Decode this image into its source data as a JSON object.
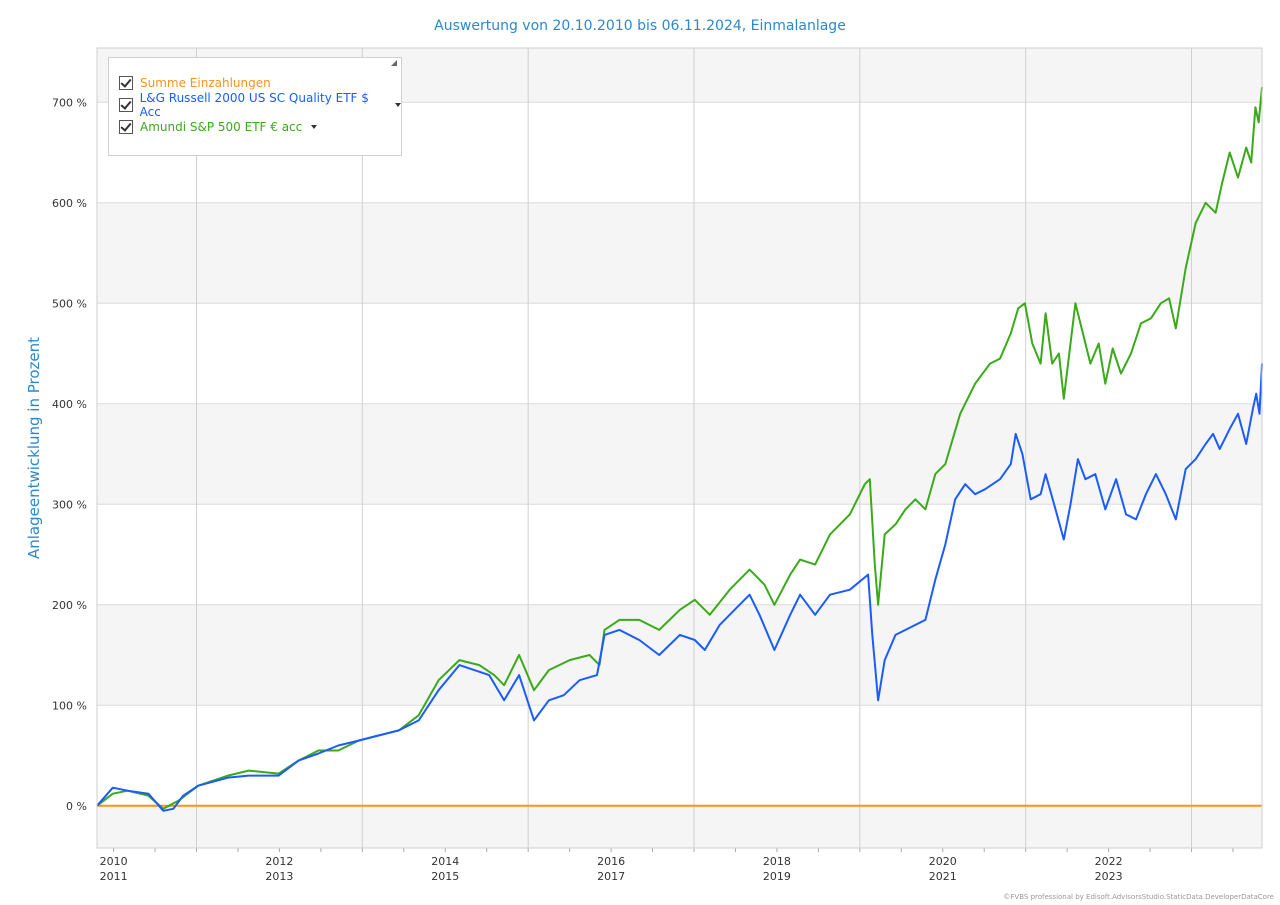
{
  "chart_data": {
    "type": "line",
    "title": "Auswertung von 20.10.2010 bis 06.11.2024, Einmalanlage",
    "ylabel": "Anlageentwicklung  in Prozent",
    "xlabel": "",
    "ylim": [
      -42,
      754
    ],
    "xlim": [
      2010.8,
      2024.85
    ],
    "grid": true,
    "legend_position": "top-left",
    "y_ticks": [
      {
        "value": 0,
        "label": "0 %"
      },
      {
        "value": 100,
        "label": "100 %"
      },
      {
        "value": 200,
        "label": "200 %"
      },
      {
        "value": 300,
        "label": "300 %"
      },
      {
        "value": 400,
        "label": "400 %"
      },
      {
        "value": 500,
        "label": "500 %"
      },
      {
        "value": 600,
        "label": "600 %"
      },
      {
        "value": 700,
        "label": "700 %"
      }
    ],
    "x_ticks": [
      {
        "value": 2011,
        "line1": "2010",
        "line2": "2011"
      },
      {
        "value": 2013,
        "line1": "2012",
        "line2": "2013"
      },
      {
        "value": 2015,
        "line1": "2014",
        "line2": "2015"
      },
      {
        "value": 2017,
        "line1": "2016",
        "line2": "2017"
      },
      {
        "value": 2019,
        "line1": "2018",
        "line2": "2019"
      },
      {
        "value": 2021,
        "line1": "2020",
        "line2": "2021"
      },
      {
        "value": 2023,
        "line1": "2022",
        "line2": "2023"
      }
    ],
    "x_gridlines": [
      2012,
      2014,
      2016,
      2018,
      2020,
      2022,
      2024
    ],
    "series": [
      {
        "name": "Summe Einzahlungen",
        "color": "#f7941d",
        "points": [
          [
            2010.8,
            0
          ],
          [
            2024.85,
            0
          ]
        ]
      },
      {
        "name": "L&G Russell 2000 US SC Quality ETF $ Acc",
        "color": "#1a5cff",
        "points": [
          [
            2010.8,
            0
          ],
          [
            2010.99,
            18
          ],
          [
            2011.17,
            15
          ],
          [
            2011.42,
            12
          ],
          [
            2011.6,
            -5
          ],
          [
            2011.72,
            -3
          ],
          [
            2011.84,
            10
          ],
          [
            2012.02,
            20
          ],
          [
            2012.38,
            28
          ],
          [
            2012.63,
            30
          ],
          [
            2012.99,
            30
          ],
          [
            2013.23,
            45
          ],
          [
            2013.47,
            52
          ],
          [
            2013.71,
            60
          ],
          [
            2013.96,
            65
          ],
          [
            2014.2,
            70
          ],
          [
            2014.44,
            75
          ],
          [
            2014.68,
            85
          ],
          [
            2014.92,
            115
          ],
          [
            2015.17,
            140
          ],
          [
            2015.35,
            135
          ],
          [
            2015.53,
            130
          ],
          [
            2015.71,
            105
          ],
          [
            2015.89,
            130
          ],
          [
            2016.07,
            85
          ],
          [
            2016.25,
            105
          ],
          [
            2016.43,
            110
          ],
          [
            2016.62,
            125
          ],
          [
            2016.83,
            130
          ],
          [
            2016.92,
            170
          ],
          [
            2017.1,
            175
          ],
          [
            2017.34,
            165
          ],
          [
            2017.58,
            150
          ],
          [
            2017.83,
            170
          ],
          [
            2018.01,
            165
          ],
          [
            2018.13,
            155
          ],
          [
            2018.31,
            180
          ],
          [
            2018.49,
            195
          ],
          [
            2018.67,
            210
          ],
          [
            2018.79,
            190
          ],
          [
            2018.97,
            155
          ],
          [
            2019.16,
            190
          ],
          [
            2019.28,
            210
          ],
          [
            2019.46,
            190
          ],
          [
            2019.64,
            210
          ],
          [
            2019.88,
            215
          ],
          [
            2020.1,
            230
          ],
          [
            2020.15,
            170
          ],
          [
            2020.22,
            105
          ],
          [
            2020.3,
            145
          ],
          [
            2020.43,
            170
          ],
          [
            2020.55,
            175
          ],
          [
            2020.67,
            180
          ],
          [
            2020.79,
            185
          ],
          [
            2020.91,
            225
          ],
          [
            2021.03,
            260
          ],
          [
            2021.15,
            305
          ],
          [
            2021.27,
            320
          ],
          [
            2021.39,
            310
          ],
          [
            2021.51,
            315
          ],
          [
            2021.69,
            325
          ],
          [
            2021.82,
            340
          ],
          [
            2021.88,
            370
          ],
          [
            2021.96,
            350
          ],
          [
            2022.06,
            305
          ],
          [
            2022.18,
            310
          ],
          [
            2022.24,
            330
          ],
          [
            2022.36,
            295
          ],
          [
            2022.46,
            265
          ],
          [
            2022.54,
            300
          ],
          [
            2022.63,
            345
          ],
          [
            2022.72,
            325
          ],
          [
            2022.84,
            330
          ],
          [
            2022.96,
            295
          ],
          [
            2023.09,
            325
          ],
          [
            2023.21,
            290
          ],
          [
            2023.33,
            285
          ],
          [
            2023.45,
            310
          ],
          [
            2023.57,
            330
          ],
          [
            2023.69,
            310
          ],
          [
            2023.81,
            285
          ],
          [
            2023.93,
            335
          ],
          [
            2024.05,
            345
          ],
          [
            2024.17,
            360
          ],
          [
            2024.26,
            370
          ],
          [
            2024.34,
            355
          ],
          [
            2024.46,
            375
          ],
          [
            2024.56,
            390
          ],
          [
            2024.66,
            360
          ],
          [
            2024.74,
            395
          ],
          [
            2024.78,
            410
          ],
          [
            2024.82,
            390
          ],
          [
            2024.85,
            440
          ]
        ]
      },
      {
        "name": "Amundi S&P 500 ETF € acc",
        "color": "#3aaa1a",
        "points": [
          [
            2010.8,
            0
          ],
          [
            2010.99,
            12
          ],
          [
            2011.17,
            15
          ],
          [
            2011.42,
            10
          ],
          [
            2011.6,
            -3
          ],
          [
            2011.78,
            5
          ],
          [
            2012.02,
            20
          ],
          [
            2012.38,
            30
          ],
          [
            2012.63,
            35
          ],
          [
            2012.99,
            32
          ],
          [
            2013.23,
            45
          ],
          [
            2013.47,
            55
          ],
          [
            2013.71,
            55
          ],
          [
            2013.96,
            65
          ],
          [
            2014.2,
            70
          ],
          [
            2014.44,
            75
          ],
          [
            2014.68,
            90
          ],
          [
            2014.92,
            125
          ],
          [
            2015.17,
            145
          ],
          [
            2015.41,
            140
          ],
          [
            2015.59,
            130
          ],
          [
            2015.71,
            120
          ],
          [
            2015.89,
            150
          ],
          [
            2016.07,
            115
          ],
          [
            2016.25,
            135
          ],
          [
            2016.5,
            145
          ],
          [
            2016.74,
            150
          ],
          [
            2016.86,
            140
          ],
          [
            2016.92,
            175
          ],
          [
            2017.1,
            185
          ],
          [
            2017.34,
            185
          ],
          [
            2017.58,
            175
          ],
          [
            2017.83,
            195
          ],
          [
            2018.01,
            205
          ],
          [
            2018.19,
            190
          ],
          [
            2018.43,
            215
          ],
          [
            2018.67,
            235
          ],
          [
            2018.85,
            220
          ],
          [
            2018.97,
            200
          ],
          [
            2019.16,
            230
          ],
          [
            2019.28,
            245
          ],
          [
            2019.46,
            240
          ],
          [
            2019.64,
            270
          ],
          [
            2019.88,
            290
          ],
          [
            2020.06,
            320
          ],
          [
            2020.12,
            325
          ],
          [
            2020.18,
            240
          ],
          [
            2020.22,
            200
          ],
          [
            2020.3,
            270
          ],
          [
            2020.43,
            280
          ],
          [
            2020.55,
            295
          ],
          [
            2020.67,
            305
          ],
          [
            2020.79,
            295
          ],
          [
            2020.91,
            330
          ],
          [
            2021.03,
            340
          ],
          [
            2021.21,
            390
          ],
          [
            2021.39,
            420
          ],
          [
            2021.57,
            440
          ],
          [
            2021.69,
            445
          ],
          [
            2021.82,
            470
          ],
          [
            2021.91,
            495
          ],
          [
            2021.99,
            500
          ],
          [
            2022.08,
            460
          ],
          [
            2022.18,
            440
          ],
          [
            2022.24,
            490
          ],
          [
            2022.32,
            440
          ],
          [
            2022.4,
            450
          ],
          [
            2022.46,
            405
          ],
          [
            2022.54,
            460
          ],
          [
            2022.6,
            500
          ],
          [
            2022.69,
            470
          ],
          [
            2022.78,
            440
          ],
          [
            2022.88,
            460
          ],
          [
            2022.96,
            420
          ],
          [
            2023.05,
            455
          ],
          [
            2023.15,
            430
          ],
          [
            2023.27,
            450
          ],
          [
            2023.39,
            480
          ],
          [
            2023.51,
            485
          ],
          [
            2023.63,
            500
          ],
          [
            2023.73,
            505
          ],
          [
            2023.81,
            475
          ],
          [
            2023.93,
            535
          ],
          [
            2024.05,
            580
          ],
          [
            2024.17,
            600
          ],
          [
            2024.29,
            590
          ],
          [
            2024.37,
            620
          ],
          [
            2024.46,
            650
          ],
          [
            2024.56,
            625
          ],
          [
            2024.66,
            655
          ],
          [
            2024.72,
            640
          ],
          [
            2024.77,
            695
          ],
          [
            2024.81,
            680
          ],
          [
            2024.85,
            715
          ]
        ]
      }
    ]
  },
  "legend": {
    "items": [
      {
        "label": "Summe Einzahlungen",
        "color": "#f7941d"
      },
      {
        "label": "L&G Russell 2000 US SC Quality ETF $ Acc",
        "color": "#1a5cff"
      },
      {
        "label": "Amundi S&P 500 ETF € acc",
        "color": "#3aaa1a"
      }
    ]
  },
  "footer": "©FVBS professional by Edisoft.AdvisorsStudio.StaticData.DeveloperDataCore"
}
